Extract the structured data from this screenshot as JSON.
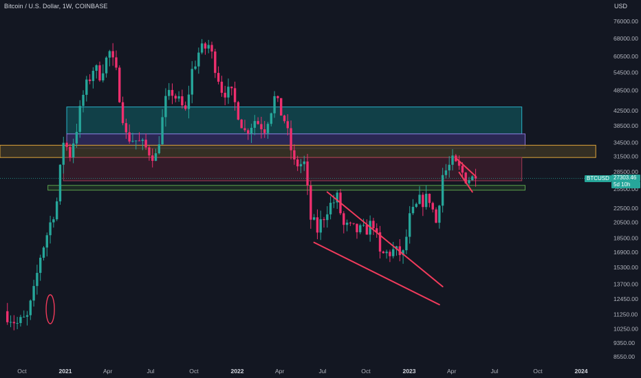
{
  "header": {
    "title": "Bitcoin / U.S. Dollar, 1W, COINBASE",
    "unit": "USD"
  },
  "price_tag": {
    "symbol": "BTCUSD",
    "price": "27303.46",
    "countdown": "5d 10h"
  },
  "colors": {
    "background": "#131722",
    "up": "#26a69a",
    "down": "#ef2f6e",
    "drawing": "#f23b5c"
  },
  "chart_data": {
    "type": "candlestick",
    "scale": "log",
    "ylim": [
      8000,
      84000
    ],
    "x_ticks": [
      {
        "label": "Oct",
        "date": "2020-10-01",
        "bold": false
      },
      {
        "label": "2021",
        "date": "2021-01-01",
        "bold": true
      },
      {
        "label": "Apr",
        "date": "2021-04-01",
        "bold": false
      },
      {
        "label": "Jul",
        "date": "2021-07-01",
        "bold": false
      },
      {
        "label": "Oct",
        "date": "2021-10-01",
        "bold": false
      },
      {
        "label": "2022",
        "date": "2022-01-01",
        "bold": true
      },
      {
        "label": "Apr",
        "date": "2022-04-01",
        "bold": false
      },
      {
        "label": "Jul",
        "date": "2022-07-01",
        "bold": false
      },
      {
        "label": "Oct",
        "date": "2022-10-01",
        "bold": false
      },
      {
        "label": "2023",
        "date": "2023-01-01",
        "bold": true
      },
      {
        "label": "Apr",
        "date": "2023-04-01",
        "bold": false
      },
      {
        "label": "Jul",
        "date": "2023-07-01",
        "bold": false
      },
      {
        "label": "Oct",
        "date": "2023-10-01",
        "bold": false
      },
      {
        "label": "2024",
        "date": "2024-01-01",
        "bold": true
      }
    ],
    "y_ticks": [
      "76000.00",
      "68000.00",
      "60500.00",
      "54500.00",
      "48500.00",
      "42500.00",
      "38500.00",
      "34500.00",
      "31500.00",
      "28500.00",
      "25500.00",
      "22500.00",
      "20500.00",
      "18500.00",
      "16900.00",
      "15300.00",
      "13700.00",
      "12450.00",
      "11250.00",
      "10250.00",
      "9350.00",
      "8550.00"
    ],
    "last_price": 27303.46,
    "anchor_points": [
      [
        "2020-08-31",
        11500
      ],
      [
        "2020-09-28",
        10600
      ],
      [
        "2020-10-19",
        11000
      ],
      [
        "2020-11-02",
        13000
      ],
      [
        "2020-11-16",
        16500
      ],
      [
        "2020-11-30",
        19000
      ],
      [
        "2020-12-21",
        23500
      ],
      [
        "2021-01-04",
        35000
      ],
      [
        "2021-01-18",
        32000
      ],
      [
        "2021-02-01",
        38000
      ],
      [
        "2021-02-15",
        47000
      ],
      [
        "2021-03-08",
        56000
      ],
      [
        "2021-03-22",
        54000
      ],
      [
        "2021-04-12",
        62000
      ],
      [
        "2021-04-26",
        54000
      ],
      [
        "2021-05-17",
        36000
      ],
      [
        "2021-06-07",
        35000
      ],
      [
        "2021-07-19",
        31500
      ],
      [
        "2021-08-09",
        45000
      ],
      [
        "2021-08-23",
        48000
      ],
      [
        "2021-09-20",
        42000
      ],
      [
        "2021-10-04",
        55000
      ],
      [
        "2021-10-18",
        62000
      ],
      [
        "2021-11-08",
        65000
      ],
      [
        "2021-11-22",
        57000
      ],
      [
        "2021-12-06",
        49000
      ],
      [
        "2021-12-27",
        47000
      ],
      [
        "2022-01-10",
        42000
      ],
      [
        "2022-01-24",
        37000
      ],
      [
        "2022-02-14",
        40000
      ],
      [
        "2022-03-07",
        38000
      ],
      [
        "2022-03-28",
        46000
      ],
      [
        "2022-04-18",
        40000
      ],
      [
        "2022-05-09",
        30000
      ],
      [
        "2022-05-30",
        30000
      ],
      [
        "2022-06-13",
        21000
      ],
      [
        "2022-06-27",
        19500
      ],
      [
        "2022-07-18",
        22500
      ],
      [
        "2022-08-08",
        24000
      ],
      [
        "2022-08-22",
        20000
      ],
      [
        "2022-09-12",
        19500
      ],
      [
        "2022-10-03",
        19300
      ],
      [
        "2022-10-24",
        20500
      ],
      [
        "2022-11-07",
        16500
      ],
      [
        "2022-12-05",
        17000
      ],
      [
        "2022-12-26",
        16600
      ],
      [
        "2023-01-09",
        21000
      ],
      [
        "2023-01-30",
        23500
      ],
      [
        "2023-02-20",
        24000
      ],
      [
        "2023-03-06",
        20500
      ],
      [
        "2023-03-20",
        28000
      ],
      [
        "2023-04-10",
        30300
      ],
      [
        "2023-04-24",
        29000
      ],
      [
        "2023-05-08",
        27500
      ],
      [
        "2023-05-22",
        27300
      ]
    ],
    "zones": [
      {
        "name": "zone-cyan",
        "from": "2021-01-04",
        "to": "2023-08-28",
        "low": 36500,
        "high": 43500,
        "fill": "#12484f",
        "stroke": "#2ab3c9"
      },
      {
        "name": "zone-purple",
        "from": "2021-01-04",
        "to": "2023-09-04",
        "low": 33200,
        "high": 36500,
        "fill": "#2f2a5c",
        "stroke": "#8c74d6"
      },
      {
        "name": "zone-orange",
        "from": "2020-08-01",
        "to": "2024-02-01",
        "low": 31300,
        "high": 33900,
        "fill": "#3b3424",
        "stroke": "#e0a63a"
      },
      {
        "name": "zone-red",
        "from": "2020-12-28",
        "to": "2023-08-28",
        "low": 26900,
        "high": 31300,
        "fill": "#3a1c2a",
        "stroke": "#a33a55"
      },
      {
        "name": "zone-green",
        "from": "2020-11-25",
        "to": "2023-09-04",
        "low": 25300,
        "high": 26100,
        "fill": "#1f2f25",
        "stroke": "#5ba14c"
      }
    ],
    "trendlines": [
      {
        "name": "wedge-upper-line",
        "from": [
          "2022-07-11",
          25000
        ],
        "to": [
          "2023-03-13",
          13500
        ]
      },
      {
        "name": "wedge-lower-line",
        "from": [
          "2022-06-13",
          18000
        ],
        "to": [
          "2023-03-06",
          12000
        ]
      },
      {
        "name": "flag-upper-line",
        "from": [
          "2023-04-10",
          31200
        ],
        "to": [
          "2023-05-22",
          27700
        ]
      },
      {
        "name": "flag-lower-line",
        "from": [
          "2023-04-17",
          28400
        ],
        "to": [
          "2023-05-15",
          25000
        ]
      }
    ],
    "marker_ellipse": {
      "date": "2020-11-30",
      "low": 10600,
      "high": 12800
    }
  }
}
